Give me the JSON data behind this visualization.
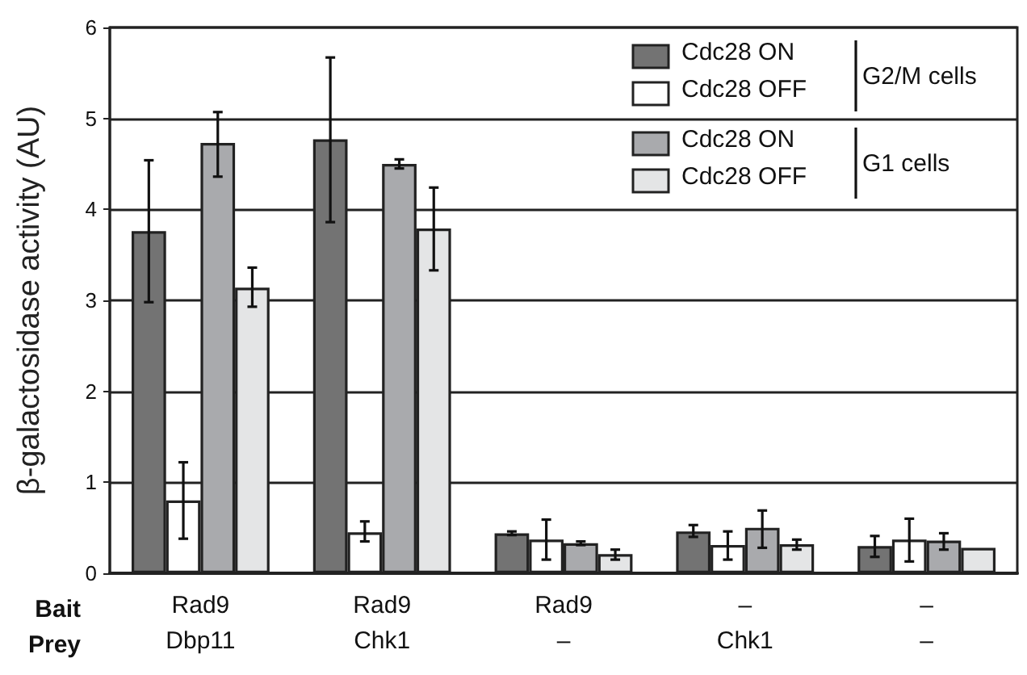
{
  "chart_data": {
    "type": "bar",
    "ylabel": "β-galactosidase activity (AU)",
    "categories": [
      "Rad9\nDbp11",
      "Rad9\nChk1",
      "Rad9\n–",
      "–\nChk1",
      "–\n–"
    ],
    "series": [
      {
        "name": "Cdc28 ON",
        "color": "#737373",
        "values": [
          3.76,
          4.77,
          0.44,
          0.46,
          0.3
        ],
        "errors": [
          [
            2.98,
            4.54
          ],
          [
            3.86,
            5.67
          ],
          [
            0.42,
            0.46
          ],
          [
            0.4,
            0.53
          ],
          [
            0.18,
            0.41
          ]
        ]
      },
      {
        "name": "Cdc28 OFF",
        "color": "#ffffff",
        "values": [
          0.8,
          0.45,
          0.37,
          0.31,
          0.37
        ],
        "errors": [
          [
            0.38,
            1.22
          ],
          [
            0.35,
            0.57
          ],
          [
            0.15,
            0.59
          ],
          [
            0.15,
            0.46
          ],
          [
            0.13,
            0.6
          ]
        ]
      },
      {
        "name": "Cdc28 ON",
        "color": "#a9aaad",
        "values": [
          4.73,
          4.5,
          0.33,
          0.5,
          0.36
        ],
        "errors": [
          [
            4.36,
            5.07
          ],
          [
            4.45,
            4.55
          ],
          [
            0.31,
            0.35
          ],
          [
            0.28,
            0.69
          ],
          [
            0.26,
            0.44
          ]
        ]
      },
      {
        "name": "Cdc28 OFF",
        "color": "#e4e5e6",
        "values": [
          3.14,
          3.79,
          0.21,
          0.32,
          0.28
        ],
        "errors": [
          [
            2.93,
            3.36
          ],
          [
            3.33,
            4.24
          ],
          [
            0.15,
            0.26
          ],
          [
            0.26,
            0.37
          ],
          null
        ]
      }
    ],
    "annotations": [
      "Bait",
      "Prey",
      "G2/M cells",
      "G1 cells"
    ],
    "ylim": [
      0,
      6
    ],
    "yticks": [
      0,
      1,
      2,
      3,
      4,
      5,
      6
    ],
    "grid": "y",
    "legend": "top right"
  }
}
